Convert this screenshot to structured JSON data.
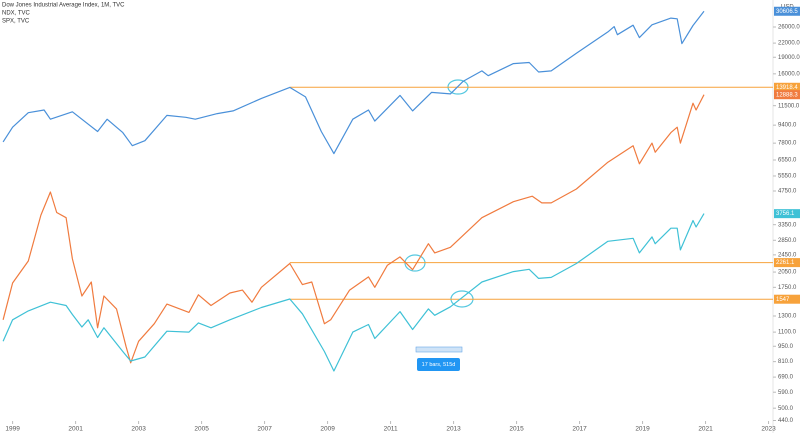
{
  "chart_data": {
    "type": "line",
    "log_scale": true,
    "currency": "USD",
    "xlim": [
      1998.6,
      2023.3
    ],
    "xticks": [
      1999,
      2001,
      2003,
      2005,
      2007,
      2009,
      2011,
      2013,
      2015,
      2017,
      2019,
      2021,
      2023
    ],
    "ylim": [
      420,
      33000
    ],
    "yticks": [
      {
        "value": 26000,
        "label": "26000.0"
      },
      {
        "value": 22000,
        "label": "22000.0"
      },
      {
        "value": 19000,
        "label": "19000.0"
      },
      {
        "value": 16000,
        "label": "16000.0"
      },
      {
        "value": 11500,
        "label": "11500.0"
      },
      {
        "value": 9400,
        "label": "9400.0"
      },
      {
        "value": 7800,
        "label": "7800.0"
      },
      {
        "value": 6550,
        "label": "6550.0"
      },
      {
        "value": 5550,
        "label": "5550.0"
      },
      {
        "value": 4750,
        "label": "4750.0"
      },
      {
        "value": 3350,
        "label": "3350.0"
      },
      {
        "value": 2850,
        "label": "2850.0"
      },
      {
        "value": 2450,
        "label": "2450.0"
      },
      {
        "value": 2050,
        "label": "2050.0"
      },
      {
        "value": 1750,
        "label": "1750.0"
      },
      {
        "value": 1300,
        "label": "1300.0"
      },
      {
        "value": 1100,
        "label": "1100.0"
      },
      {
        "value": 950,
        "label": "950.0"
      },
      {
        "value": 810,
        "label": "810.0"
      },
      {
        "value": 690,
        "label": "690.0"
      },
      {
        "value": 590,
        "label": "590.0"
      },
      {
        "value": 500,
        "label": "500.0"
      },
      {
        "value": 440,
        "label": "440.0"
      }
    ],
    "series": [
      {
        "name": "Dow Jones Industrial Average Index, 1M, TVC",
        "color": "#4a90d9",
        "x": [
          1998.7,
          1999.0,
          1999.5,
          2000.0,
          2000.2,
          2000.9,
          2001.7,
          2002.0,
          2002.5,
          2002.8,
          2003.2,
          2003.9,
          2004.5,
          2004.8,
          2005.5,
          2006.0,
          2006.9,
          2007.8,
          2008.3,
          2008.8,
          2009.2,
          2009.8,
          2010.3,
          2010.5,
          2011.3,
          2011.7,
          2012.3,
          2012.9,
          2013.3,
          2013.9,
          2014.1,
          2014.9,
          2015.4,
          2015.7,
          2016.1,
          2016.9,
          2017.9,
          2018.1,
          2018.2,
          2018.7,
          2018.9,
          2019.3,
          2019.9,
          2020.1,
          2020.25,
          2020.6,
          2020.95
        ],
        "values": [
          7900,
          9200,
          10700,
          11000,
          10000,
          10800,
          8800,
          10000,
          8700,
          7600,
          8000,
          10400,
          10200,
          10000,
          10600,
          10900,
          12400,
          13900,
          12600,
          8800,
          7000,
          10000,
          11000,
          9800,
          12800,
          10900,
          13200,
          13000,
          14800,
          16500,
          15700,
          17800,
          18000,
          16300,
          16500,
          19800,
          24700,
          26100,
          24000,
          26500,
          23300,
          26600,
          28500,
          28300,
          21900,
          26400,
          30606.5
        ]
      },
      {
        "name": "NDX, TVC",
        "color": "#f07b3f",
        "x": [
          1998.7,
          1999.0,
          1999.5,
          1999.9,
          2000.2,
          2000.4,
          2000.7,
          2000.9,
          2001.2,
          2001.5,
          2001.7,
          2001.9,
          2002.3,
          2002.6,
          2002.75,
          2003.0,
          2003.5,
          2003.9,
          2004.6,
          2004.9,
          2005.3,
          2005.9,
          2006.3,
          2006.6,
          2006.9,
          2007.8,
          2008.2,
          2008.5,
          2008.9,
          2009.1,
          2009.7,
          2010.3,
          2010.5,
          2010.9,
          2011.3,
          2011.7,
          2012.2,
          2012.4,
          2012.9,
          2013.9,
          2014.9,
          2015.5,
          2015.8,
          2016.1,
          2016.9,
          2017.9,
          2018.7,
          2018.9,
          2019.3,
          2019.4,
          2019.9,
          2020.1,
          2020.2,
          2020.6,
          2020.7,
          2020.95
        ],
        "values": [
          1250,
          1830,
          2300,
          3700,
          4700,
          3800,
          3600,
          2350,
          1600,
          1850,
          1150,
          1600,
          1400,
          950,
          800,
          1000,
          1200,
          1470,
          1350,
          1620,
          1450,
          1650,
          1700,
          1500,
          1750,
          2240,
          1800,
          1850,
          1200,
          1250,
          1700,
          1950,
          1750,
          2200,
          2400,
          2100,
          2750,
          2500,
          2650,
          3600,
          4250,
          4500,
          4200,
          4200,
          4850,
          6400,
          7600,
          6300,
          7800,
          7100,
          8700,
          9200,
          7800,
          11800,
          11000,
          12888.3
        ]
      },
      {
        "name": "SPX, TVC",
        "color": "#3fc1d6",
        "x": [
          1998.7,
          1999.0,
          1999.5,
          2000.2,
          2000.7,
          2000.9,
          2001.2,
          2001.4,
          2001.7,
          2001.9,
          2002.5,
          2002.75,
          2003.2,
          2003.9,
          2004.6,
          2004.9,
          2005.3,
          2005.9,
          2006.9,
          2007.8,
          2008.2,
          2008.9,
          2009.2,
          2009.8,
          2010.3,
          2010.5,
          2011.3,
          2011.7,
          2012.2,
          2012.4,
          2012.9,
          2013.9,
          2014.9,
          2015.4,
          2015.7,
          2016.1,
          2016.9,
          2017.9,
          2018.7,
          2018.9,
          2019.3,
          2019.4,
          2019.9,
          2020.1,
          2020.2,
          2020.6,
          2020.7,
          2020.95
        ],
        "values": [
          1000,
          1250,
          1370,
          1500,
          1450,
          1320,
          1160,
          1250,
          1040,
          1150,
          900,
          815,
          850,
          1110,
          1100,
          1210,
          1150,
          1250,
          1420,
          1550,
          1330,
          900,
          735,
          1100,
          1190,
          1030,
          1360,
          1130,
          1400,
          1310,
          1430,
          1850,
          2060,
          2110,
          1920,
          1940,
          2240,
          2820,
          2910,
          2500,
          2950,
          2750,
          3230,
          3230,
          2580,
          3500,
          3270,
          3756.1
        ]
      }
    ],
    "levels": [
      {
        "value": 13918.4,
        "start": 2007.8
      },
      {
        "value": 2261.1,
        "start": 2007.8
      },
      {
        "value": 1547.0,
        "start": 2007.8
      }
    ],
    "level_color": "#f7a23b",
    "annotations": [
      "17 bars, 515d"
    ]
  }
}
